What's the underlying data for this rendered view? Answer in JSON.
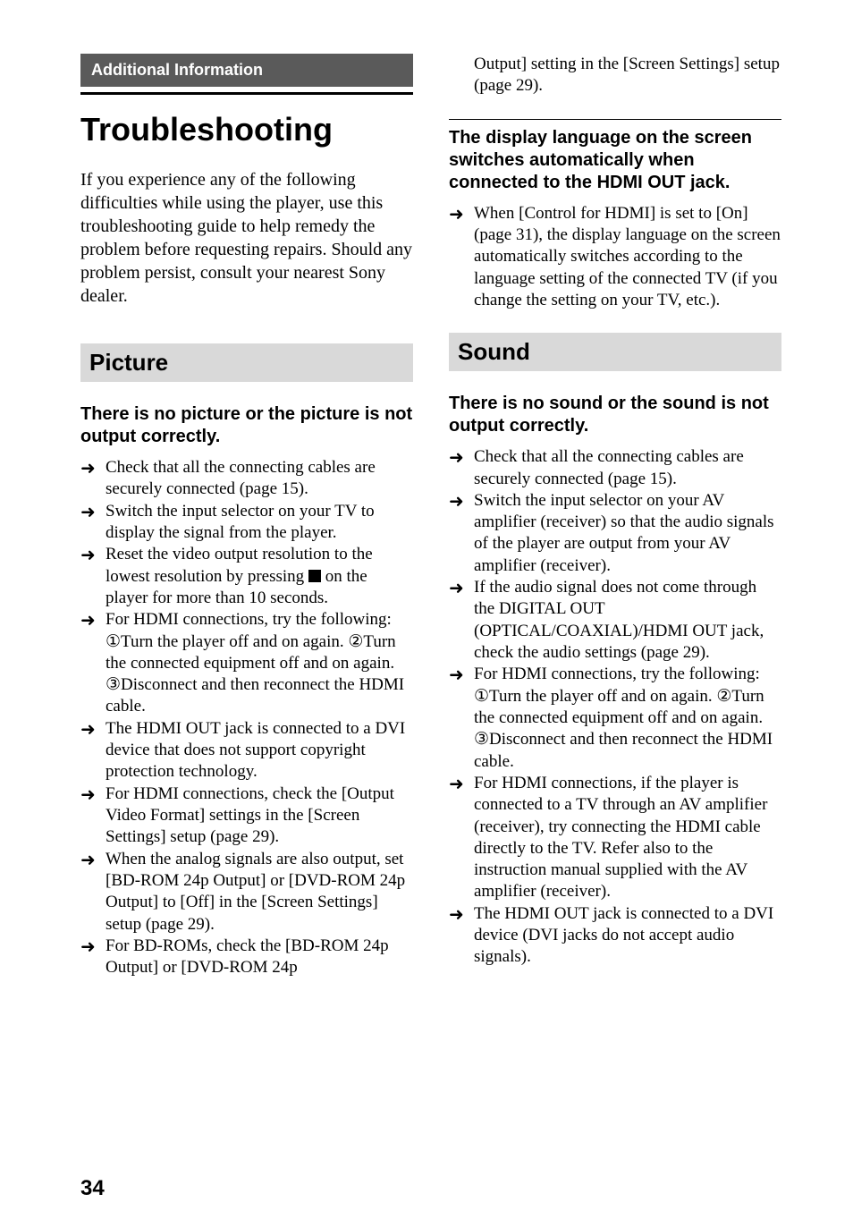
{
  "page_number": "34",
  "section_header": "Additional Information",
  "main_title": "Troubleshooting",
  "intro": "If you experience any of the following difficulties while using the player, use this troubleshooting guide to help remedy the problem before requesting repairs. Should any problem persist, consult your nearest Sony dealer.",
  "col_right_top": "Output] setting in the [Screen Settings] setup (page 29).",
  "picture": {
    "header": "Picture",
    "topic1": {
      "title": "There is no picture or the picture is not output correctly.",
      "items": [
        "Check that all the connecting cables are securely connected (page 15).",
        "Switch the input selector on your TV to display the signal from the player.",
        "Reset the video output resolution to the lowest resolution by pressing ■ on the player for more than 10 seconds.",
        "For HDMI connections, try the following: ①Turn the player off and on again. ②Turn the connected equipment off and on again. ③Disconnect and then reconnect the HDMI cable.",
        "The HDMI OUT jack is connected to a DVI device that does not support copyright protection technology.",
        "For HDMI connections, check the [Output Video Format] settings in the [Screen Settings] setup (page 29).",
        "When the analog signals are also output, set [BD-ROM 24p Output] or [DVD-ROM 24p Output] to [Off] in the [Screen Settings] setup (page 29).",
        "For BD-ROMs, check the [BD-ROM 24p Output] or [DVD-ROM 24p"
      ]
    },
    "topic2": {
      "title": "The display language on the screen switches automatically when connected to the HDMI OUT jack.",
      "items": [
        "When [Control for HDMI] is set to [On] (page 31), the display language on the screen automatically switches according to the language setting of the connected TV (if you change the setting on your TV, etc.)."
      ]
    }
  },
  "sound": {
    "header": "Sound",
    "topic1": {
      "title": "There is no sound or the sound is not output correctly.",
      "items": [
        "Check that all the connecting cables are securely connected (page 15).",
        "Switch the input selector on your AV amplifier (receiver) so that the audio signals of the player are output from your AV amplifier (receiver).",
        "If the audio signal does not come through the DIGITAL OUT (OPTICAL/COAXIAL)/HDMI OUT jack, check the audio settings (page 29).",
        "For HDMI connections, try the following: ①Turn the player off and on again. ②Turn the connected equipment off and on again. ③Disconnect and then reconnect the HDMI cable.",
        "For HDMI connections, if the player is connected to a TV through an AV amplifier (receiver), try connecting the HDMI cable directly to the TV. Refer also to the instruction manual supplied with the AV amplifier (receiver).",
        "The HDMI OUT jack is connected to a DVI device (DVI jacks do not accept audio signals)."
      ]
    }
  },
  "arrow_glyph": "➜",
  "colors": {
    "section_bg": "#5a5a5a",
    "section_fg": "#ffffff",
    "subsection_bg": "#d9d9d9",
    "text": "#000000",
    "page_bg": "#ffffff"
  }
}
